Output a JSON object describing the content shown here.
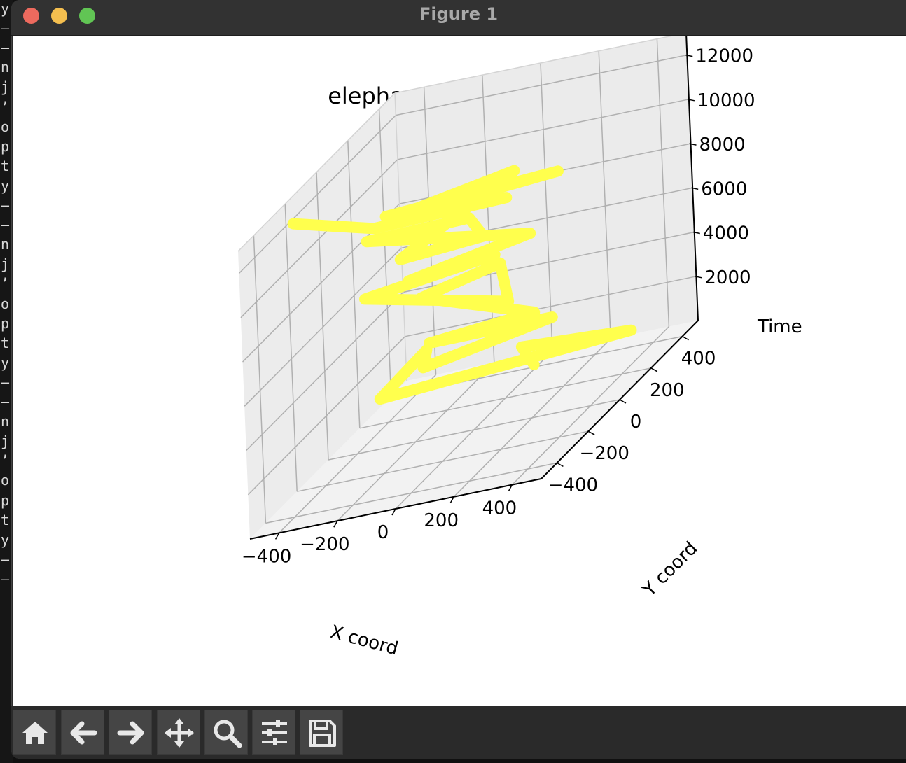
{
  "window": {
    "title": "Figure 1"
  },
  "toolbar": {
    "buttons": [
      {
        "icon": "home-icon"
      },
      {
        "icon": "back-arrow-icon"
      },
      {
        "icon": "forward-arrow-icon"
      },
      {
        "icon": "pan-move-icon"
      },
      {
        "icon": "zoom-magnifier-icon"
      },
      {
        "icon": "configure-subplots-icon"
      },
      {
        "icon": "save-floppy-icon"
      }
    ]
  },
  "terminal_chars": [
    "y",
    "–",
    "–",
    "n",
    "j",
    "’",
    "o",
    "p",
    "t",
    "y",
    "–",
    "–",
    "n",
    "j",
    "’",
    "o",
    "p",
    "t",
    "y",
    "–",
    "–",
    "n",
    "j",
    "’",
    "o",
    "p",
    "t",
    "y",
    "–",
    "–"
  ],
  "chart_data": {
    "type": "line",
    "projection": "3d",
    "title": "elephant herd movement",
    "xlabel": "X coord",
    "ylabel": "Y coord",
    "zlabel": "Time",
    "xlim": [
      -500,
      500
    ],
    "ylim": [
      -500,
      500
    ],
    "zlim": [
      0,
      13000
    ],
    "x_ticks": [
      -400,
      -200,
      0,
      200,
      400
    ],
    "x_tick_labels": [
      "−400",
      "−200",
      "0",
      "200",
      "400"
    ],
    "y_ticks": [
      -400,
      -200,
      0,
      200,
      400
    ],
    "y_tick_labels": [
      "−400",
      "−200",
      "0",
      "200",
      "400"
    ],
    "z_ticks": [
      2000,
      4000,
      6000,
      8000,
      10000,
      12000
    ],
    "z_tick_labels": [
      "2000",
      "4000",
      "6000",
      "8000",
      "10000",
      "12000"
    ],
    "grid": true,
    "series": [
      {
        "color": "#ffff4d",
        "points": [
          [
            30,
            330,
            500
          ],
          [
            -60,
            420,
            900
          ],
          [
            410,
            250,
            1600
          ],
          [
            -310,
            -10,
            2300
          ],
          [
            -250,
            180,
            3000
          ],
          [
            -120,
            -80,
            3700
          ],
          [
            260,
            40,
            4100
          ],
          [
            -90,
            -90,
            4800
          ],
          [
            300,
            -140,
            5500
          ],
          [
            -200,
            70,
            6000
          ],
          [
            40,
            130,
            6500
          ],
          [
            280,
            -260,
            6900
          ],
          [
            -320,
            -60,
            7200
          ],
          [
            90,
            10,
            7600
          ],
          [
            -130,
            -130,
            8000
          ],
          [
            230,
            -20,
            8400
          ],
          [
            -400,
            110,
            8800
          ],
          [
            -20,
            60,
            9200
          ],
          [
            160,
            -180,
            9600
          ],
          [
            -60,
            -300,
            10000
          ],
          [
            90,
            150,
            10400
          ],
          [
            -200,
            -100,
            10800
          ],
          [
            350,
            -50,
            11100
          ],
          [
            -160,
            -200,
            11500
          ],
          [
            310,
            -300,
            11800
          ],
          [
            -90,
            -400,
            12200
          ],
          [
            -420,
            -300,
            12600
          ]
        ]
      }
    ]
  }
}
